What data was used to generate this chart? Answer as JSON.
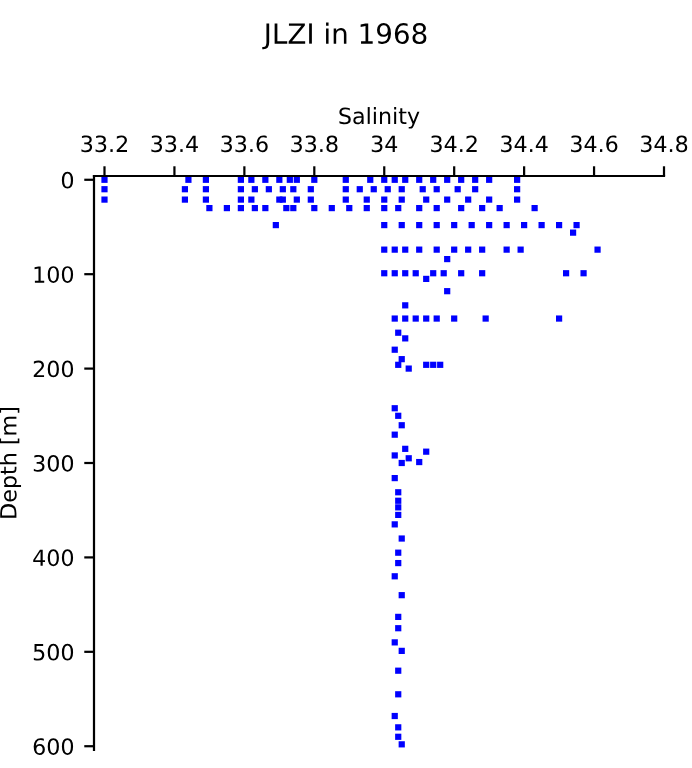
{
  "chart_data": {
    "type": "scatter",
    "title": "JLZI in 1968",
    "xlabel": "Salinity",
    "ylabel": "Depth [m]",
    "xlim": [
      33.17,
      34.8
    ],
    "xticks": [
      {
        "value": 33.2,
        "label": "33.2"
      },
      {
        "value": 33.4,
        "label": "33.4"
      },
      {
        "value": 33.6,
        "label": "33.6"
      },
      {
        "value": 33.8,
        "label": "33.8"
      },
      {
        "value": 34,
        "label": "34"
      },
      {
        "value": 34.2,
        "label": "34.2"
      },
      {
        "value": 34.4,
        "label": "34.4"
      },
      {
        "value": 34.6,
        "label": "34.6"
      },
      {
        "value": 34.8,
        "label": "34.8"
      }
    ],
    "ylim": [
      604,
      -4
    ],
    "yticks": [
      0,
      100,
      200,
      300,
      400,
      500,
      600
    ],
    "marker": "square",
    "grid": false,
    "series": [
      {
        "color": "#0000ff",
        "x": [
          33.2,
          33.44,
          33.49,
          33.59,
          33.62,
          33.66,
          33.7,
          33.73,
          33.75,
          33.8,
          33.89,
          33.96,
          34.0,
          34.03,
          34.06,
          34.1,
          34.14,
          34.18,
          34.22,
          34.26,
          34.3,
          34.38,
          33.2,
          33.43,
          33.49,
          33.59,
          33.63,
          33.67,
          33.71,
          33.74,
          33.79,
          33.89,
          33.93,
          33.97,
          34.01,
          34.05,
          34.11,
          34.15,
          34.21,
          34.26,
          34.38,
          33.2,
          33.43,
          33.49,
          33.59,
          33.62,
          33.7,
          33.71,
          33.75,
          33.79,
          33.89,
          33.95,
          34.0,
          34.05,
          34.12,
          34.18,
          34.24,
          34.3,
          34.38,
          33.5,
          33.55,
          33.59,
          33.63,
          33.66,
          33.72,
          33.74,
          33.8,
          33.85,
          33.9,
          33.95,
          34.0,
          34.04,
          34.1,
          34.15,
          34.22,
          34.28,
          34.33,
          34.43,
          33.69,
          34.0,
          34.05,
          34.1,
          34.15,
          34.2,
          34.25,
          34.3,
          34.35,
          34.4,
          34.45,
          34.5,
          34.55,
          34.54,
          34.0,
          34.03,
          34.06,
          34.1,
          34.15,
          34.2,
          34.24,
          34.28,
          34.35,
          34.39,
          34.61,
          34.18,
          34.0,
          34.03,
          34.06,
          34.09,
          34.14,
          34.17,
          34.22,
          34.28,
          34.52,
          34.57,
          34.18,
          34.12,
          34.06,
          34.03,
          34.06,
          34.09,
          34.12,
          34.15,
          34.2,
          34.29,
          34.5,
          34.04,
          34.06,
          34.03,
          34.05,
          34.07,
          34.04,
          34.12,
          34.14,
          34.16,
          34.03,
          34.04,
          34.05,
          34.03,
          34.06,
          34.03,
          34.05,
          34.07,
          34.12,
          34.1,
          34.03,
          34.04,
          34.04,
          34.04,
          34.04,
          34.03,
          34.05,
          34.04,
          34.04,
          34.03,
          34.05,
          34.04,
          34.04,
          34.03,
          34.05,
          34.04,
          34.04,
          34.03,
          34.04,
          34.04,
          34.05
        ],
        "values": [
          0,
          0,
          0,
          0,
          0,
          0,
          0,
          0,
          0,
          0,
          0,
          0,
          0,
          0,
          0,
          0,
          0,
          0,
          0,
          0,
          0,
          0,
          10,
          10,
          10,
          10,
          10,
          10,
          10,
          10,
          10,
          10,
          10,
          10,
          10,
          10,
          10,
          10,
          10,
          10,
          10,
          21,
          21,
          21,
          21,
          21,
          21,
          21,
          21,
          21,
          21,
          21,
          21,
          21,
          21,
          21,
          21,
          21,
          21,
          30,
          30,
          30,
          30,
          30,
          30,
          30,
          30,
          30,
          30,
          30,
          30,
          30,
          30,
          30,
          30,
          30,
          30,
          30,
          48,
          48,
          48,
          48,
          48,
          48,
          48,
          48,
          48,
          48,
          48,
          48,
          48,
          56,
          74,
          74,
          74,
          74,
          74,
          74,
          74,
          74,
          74,
          74,
          74,
          84,
          99,
          99,
          99,
          99,
          99,
          99,
          99,
          99,
          99,
          99,
          118,
          105,
          133,
          147,
          147,
          147,
          147,
          147,
          147,
          147,
          147,
          162,
          168,
          180,
          190,
          200,
          196,
          196,
          196,
          196,
          242,
          250,
          260,
          270,
          285,
          292,
          300,
          295,
          288,
          299,
          316,
          331,
          340,
          347,
          355,
          365,
          380,
          395,
          406,
          420,
          440,
          463,
          475,
          490,
          499,
          520,
          545,
          568,
          580,
          590,
          598
        ]
      }
    ]
  }
}
